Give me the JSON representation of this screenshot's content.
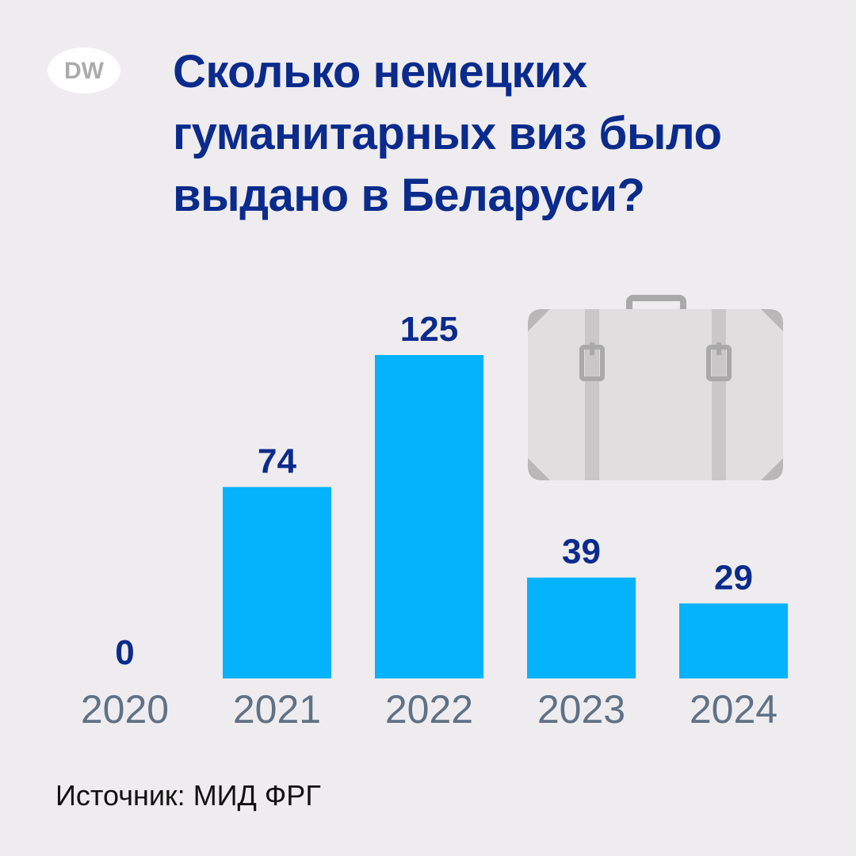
{
  "brand": {
    "logo_text": "DW"
  },
  "title_lines": [
    "Сколько немецких",
    "гуманитарных виз было",
    "выдано в Беларуси?"
  ],
  "source": "Источник: МИД ФРГ",
  "colors": {
    "background": "#eeecee",
    "bar": "#05b2fc",
    "value_label": "#0b2b8c",
    "category_label": "#5f7186",
    "title": "#0b2b8c"
  },
  "decoration": {
    "icon": "suitcase-icon"
  },
  "chart_data": {
    "type": "bar",
    "categories": [
      "2020",
      "2021",
      "2022",
      "2023",
      "2024"
    ],
    "values": [
      0,
      74,
      125,
      39,
      29
    ],
    "value_labels": [
      "0",
      "74",
      "125",
      "39",
      "29"
    ],
    "title": "Сколько немецких гуманитарных виз было выдано в Беларуси?",
    "xlabel": "",
    "ylabel": "",
    "ylim": [
      0,
      125
    ],
    "grid": false,
    "legend": "none"
  }
}
